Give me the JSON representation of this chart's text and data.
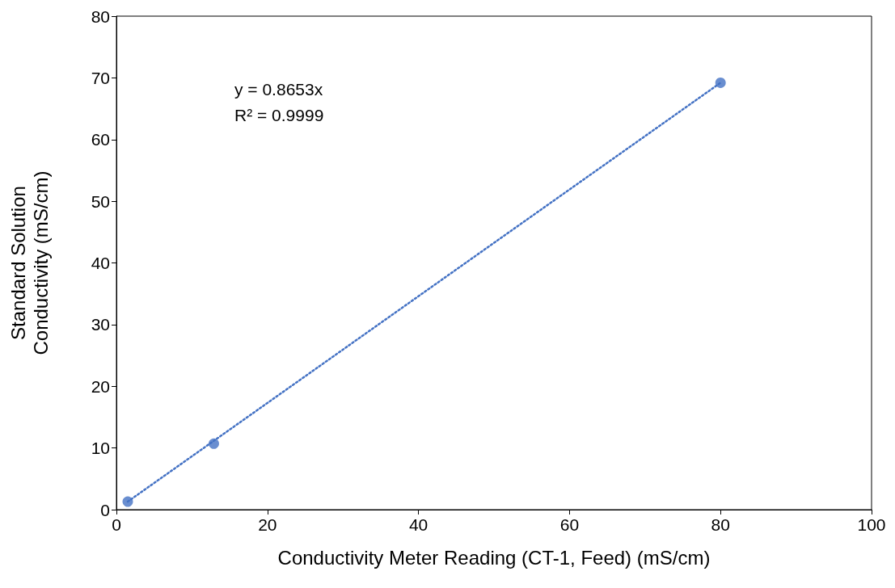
{
  "chart_data": {
    "type": "scatter",
    "xlabel": "Conductivity Meter Reading (CT-1, Feed) (mS/cm)",
    "ylabel": "Standard Solution\nConductivity (mS/cm)",
    "annotations": [
      "y = 0.8653x",
      "R² = 0.9999"
    ],
    "xlim": [
      0,
      100
    ],
    "xticks": [
      0,
      20,
      40,
      60,
      80,
      100
    ],
    "ylim": [
      0,
      80
    ],
    "yticks": [
      0,
      10,
      20,
      30,
      40,
      50,
      60,
      70,
      80
    ],
    "grid": false,
    "series": [
      {
        "color": "#4472c4",
        "marker": "circle",
        "x": [
          1.5,
          12.9,
          80
        ],
        "values": [
          1.3,
          10.7,
          69.2
        ]
      },
      {
        "type": "line",
        "color": "#4472c4",
        "marker": "none",
        "line_style": "dotted",
        "x": [
          1.5,
          80
        ],
        "values": [
          1.3,
          69.2
        ]
      }
    ]
  }
}
